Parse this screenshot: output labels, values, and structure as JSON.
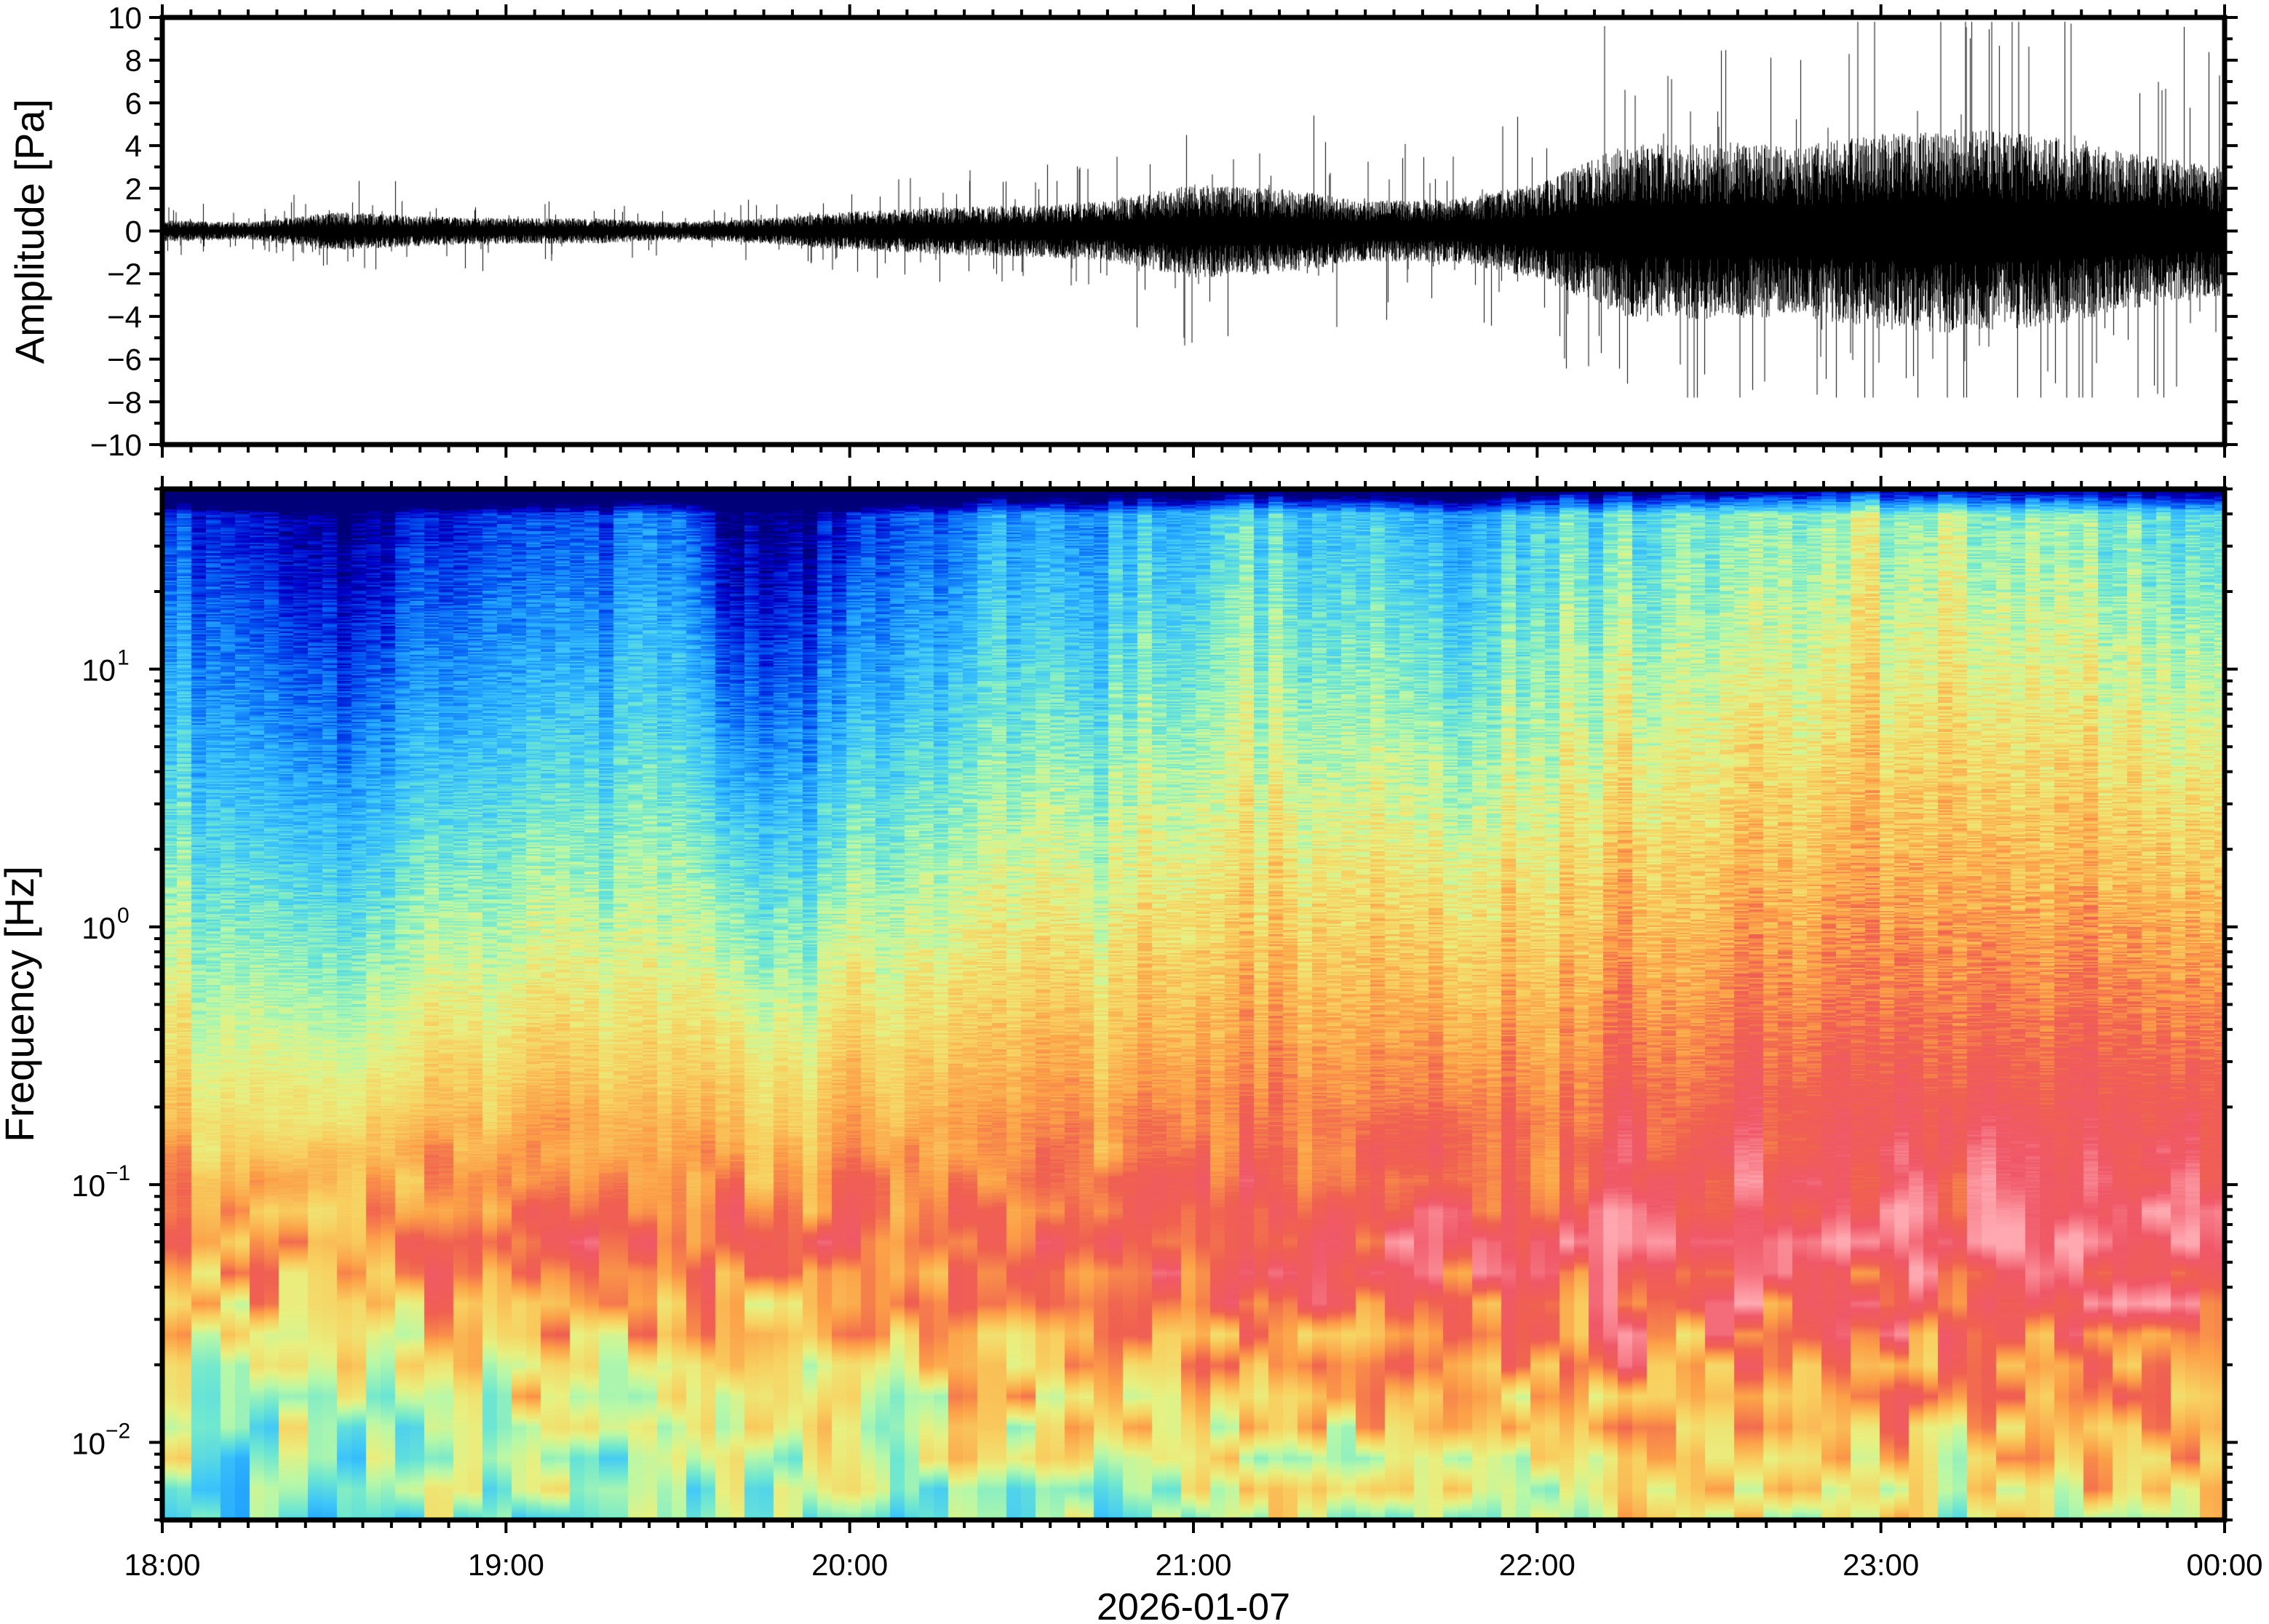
{
  "xaxis": {
    "ticks": [
      "18:00",
      "19:00",
      "20:00",
      "21:00",
      "22:00",
      "23:00",
      "00:00"
    ],
    "minor_interval_minutes": 5,
    "label": "2026-01-07"
  },
  "chart_data": [
    {
      "type": "line",
      "name": "waveform",
      "ylabel": "Amplitude [Pa]",
      "ylim": [
        -10,
        10
      ],
      "yticks": [
        "10",
        "8",
        "6",
        "4",
        "2",
        "0",
        "−2",
        "−4",
        "−6",
        "−8",
        "−10"
      ],
      "ytick_values": [
        10,
        8,
        6,
        4,
        2,
        0,
        -2,
        -4,
        -6,
        -8,
        -10
      ],
      "envelope_times_h": [
        0,
        0.25,
        0.5,
        0.75,
        1,
        1.25,
        1.5,
        1.75,
        2,
        2.25,
        2.5,
        2.75,
        3,
        3.25,
        3.5,
        3.75,
        4,
        4.25,
        4.5,
        4.75,
        5,
        5.25,
        5.5,
        5.75,
        6
      ],
      "envelope_pa": [
        0.25,
        0.2,
        0.45,
        0.35,
        0.3,
        0.3,
        0.2,
        0.3,
        0.45,
        0.55,
        0.6,
        0.7,
        1.1,
        1.0,
        0.7,
        0.75,
        1.1,
        2.0,
        2.1,
        2.0,
        2.3,
        2.4,
        2.2,
        1.8,
        1.5
      ],
      "peak_max_pa": 9.8,
      "peak_min_pa": -7.8,
      "color": "#000000"
    },
    {
      "type": "heatmap",
      "name": "spectrogram",
      "ylabel": "Frequency [Hz]",
      "yscale": "log",
      "ylim": [
        0.005,
        50
      ],
      "yticks": [
        {
          "base": "10",
          "exp": "1",
          "value": 10
        },
        {
          "base": "10",
          "exp": "0",
          "value": 1
        },
        {
          "base": "10",
          "exp": "−1",
          "value": 0.1
        },
        {
          "base": "10",
          "exp": "−2",
          "value": 0.01
        }
      ],
      "peak_frequency_hz": 0.06,
      "relative_power_at_peak_start": 0.76,
      "relative_power_at_peak_end": 0.96,
      "hf_level_times_h": [
        0,
        0.25,
        0.5,
        0.75,
        1,
        1.25,
        1.5,
        1.75,
        2,
        2.25,
        2.5,
        2.75,
        3,
        3.25,
        3.5,
        3.75,
        4,
        4.25,
        4.5,
        4.75,
        5,
        5.25,
        5.5,
        5.75,
        6
      ],
      "hf_level_10hz": [
        0.3,
        0.24,
        0.16,
        0.26,
        0.3,
        0.3,
        0.34,
        0.14,
        0.27,
        0.34,
        0.4,
        0.42,
        0.46,
        0.5,
        0.47,
        0.4,
        0.5,
        0.52,
        0.55,
        0.58,
        0.6,
        0.6,
        0.58,
        0.55,
        0.5
      ],
      "colormap": [
        [
          0.0,
          "#000078"
        ],
        [
          0.08,
          "#0000c8"
        ],
        [
          0.18,
          "#0050f0"
        ],
        [
          0.28,
          "#20a0ff"
        ],
        [
          0.36,
          "#40c8f8"
        ],
        [
          0.44,
          "#70e8d0"
        ],
        [
          0.52,
          "#b8f8a8"
        ],
        [
          0.58,
          "#e8f080"
        ],
        [
          0.66,
          "#f8d060"
        ],
        [
          0.74,
          "#fca048"
        ],
        [
          0.82,
          "#f06050"
        ],
        [
          0.9,
          "#f05868"
        ],
        [
          1.0,
          "#ffa8b0"
        ]
      ]
    }
  ]
}
